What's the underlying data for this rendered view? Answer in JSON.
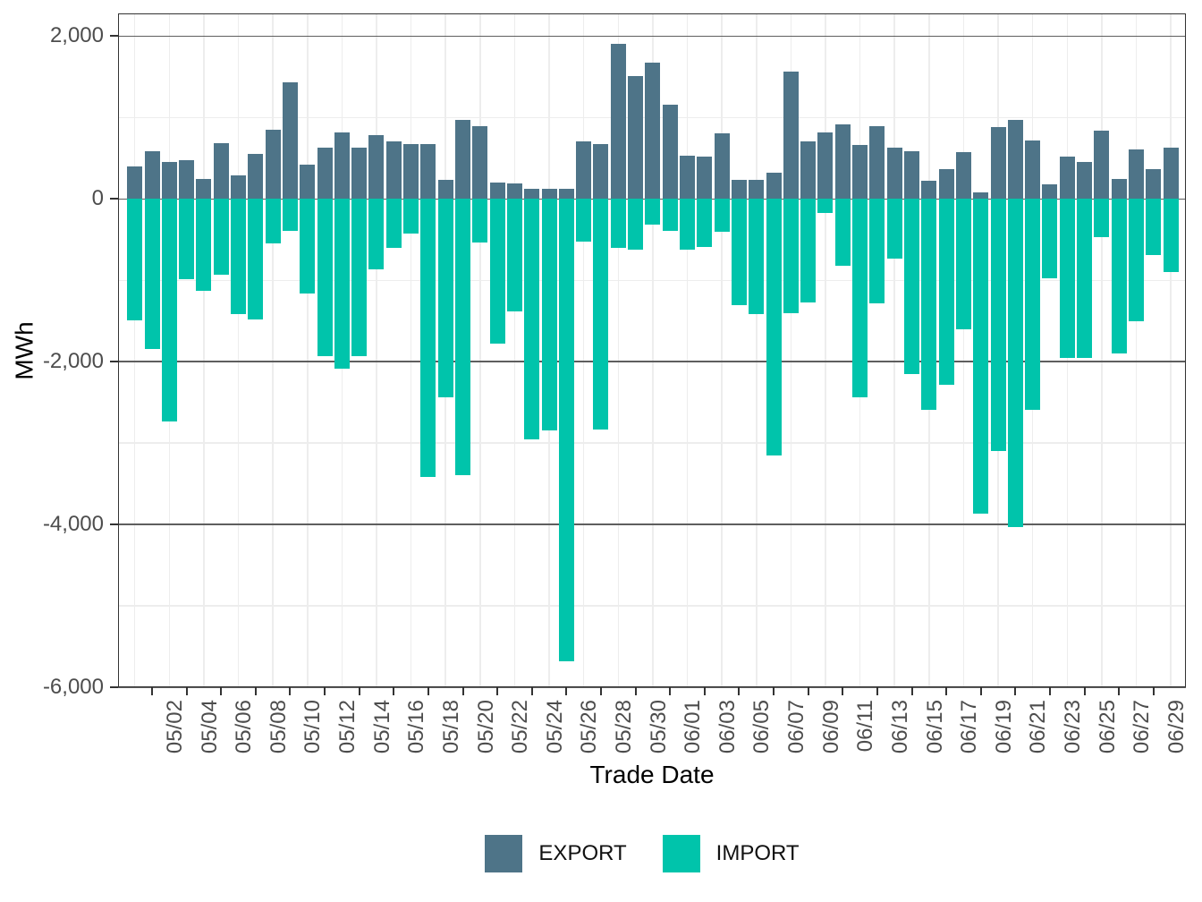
{
  "chart_data": {
    "type": "bar",
    "subtype": "diverging-stacked",
    "title": "",
    "xlabel": "Trade Date",
    "ylabel": "MWh",
    "grid": true,
    "legend_position": "bottom",
    "ylim": [
      -6000,
      2280
    ],
    "categories": [
      "05/01",
      "05/02",
      "05/03",
      "05/04",
      "05/05",
      "05/06",
      "05/07",
      "05/08",
      "05/09",
      "05/10",
      "05/11",
      "05/12",
      "05/13",
      "05/14",
      "05/15",
      "05/16",
      "05/17",
      "05/18",
      "05/19",
      "05/20",
      "05/21",
      "05/22",
      "05/23",
      "05/24",
      "05/25",
      "05/26",
      "05/27",
      "05/28",
      "05/29",
      "05/30",
      "05/31",
      "06/01",
      "06/02",
      "06/03",
      "06/04",
      "06/05",
      "06/06",
      "06/07",
      "06/08",
      "06/09",
      "06/10",
      "06/11",
      "06/12",
      "06/13",
      "06/14",
      "06/15",
      "06/16",
      "06/17",
      "06/18",
      "06/19",
      "06/20",
      "06/21",
      "06/22",
      "06/23",
      "06/24",
      "06/25",
      "06/26",
      "06/27",
      "06/28",
      "06/29",
      "06/30"
    ],
    "series": [
      {
        "name": "EXPORT",
        "color": "#4E7488",
        "values": [
          395,
          590,
          450,
          480,
          250,
          690,
          295,
          550,
          855,
          1435,
          425,
          635,
          820,
          630,
          790,
          710,
          675,
          680,
          230,
          975,
          900,
          205,
          190,
          120,
          130,
          120,
          710,
          680,
          1910,
          1515,
          1680,
          1160,
          530,
          525,
          810,
          230,
          240,
          320,
          1560,
          710,
          820,
          920,
          660,
          890,
          635,
          590,
          220,
          370,
          580,
          80,
          885,
          975,
          715,
          185,
          520,
          450,
          845,
          250,
          610,
          370,
          635
        ]
      },
      {
        "name": "IMPORT",
        "color": "#00C4AB",
        "values": [
          -1490,
          -1845,
          -2730,
          -985,
          -1130,
          -930,
          -1420,
          -1480,
          -550,
          -390,
          -1160,
          -1930,
          -2090,
          -1930,
          -860,
          -600,
          -430,
          -3420,
          -2440,
          -3390,
          -530,
          -1780,
          -1380,
          -2950,
          -2840,
          -5680,
          -525,
          -2830,
          -600,
          -620,
          -320,
          -390,
          -620,
          -590,
          -400,
          -1310,
          -1420,
          -3150,
          -1400,
          -1270,
          -170,
          -820,
          -2440,
          -1280,
          -730,
          -2150,
          -2590,
          -2280,
          -1600,
          -3870,
          -3100,
          -4030,
          -2590,
          -980,
          -1950,
          -1950,
          -470,
          -1900,
          -1500,
          -690,
          -900
        ]
      }
    ],
    "y_axis": {
      "major": [
        {
          "value": 2000,
          "label": "2,000"
        },
        {
          "value": 0,
          "label": "0"
        },
        {
          "value": -2000,
          "label": "-2,000"
        },
        {
          "value": -4000,
          "label": "-4,000"
        },
        {
          "value": -6000,
          "label": "-6,000"
        }
      ],
      "minor": [
        1000,
        -1000,
        -3000,
        -5000
      ]
    },
    "x_ticks": {
      "start_index": 1,
      "step": 2,
      "labels": [
        "05/02",
        "05/04",
        "05/06",
        "05/08",
        "05/10",
        "05/12",
        "05/14",
        "05/16",
        "05/18",
        "05/20",
        "05/22",
        "05/24",
        "05/26",
        "05/28",
        "05/30",
        "06/01",
        "06/03",
        "06/05",
        "06/07",
        "06/09",
        "06/11",
        "06/13",
        "06/15",
        "06/17",
        "06/19",
        "06/21",
        "06/23",
        "06/25",
        "06/27",
        "06/29"
      ]
    },
    "colors": {
      "export": "#4E7488",
      "import": "#00C4AB",
      "grid_major": "#5E5E5E",
      "grid_minor": "#EDEDED",
      "panel_border": "#333333",
      "tick_mark": "#333333",
      "tick_label": "#4D4D4D",
      "axis_title": "#000000",
      "legend_text": "#111111",
      "background": "#FFFFFF"
    }
  }
}
